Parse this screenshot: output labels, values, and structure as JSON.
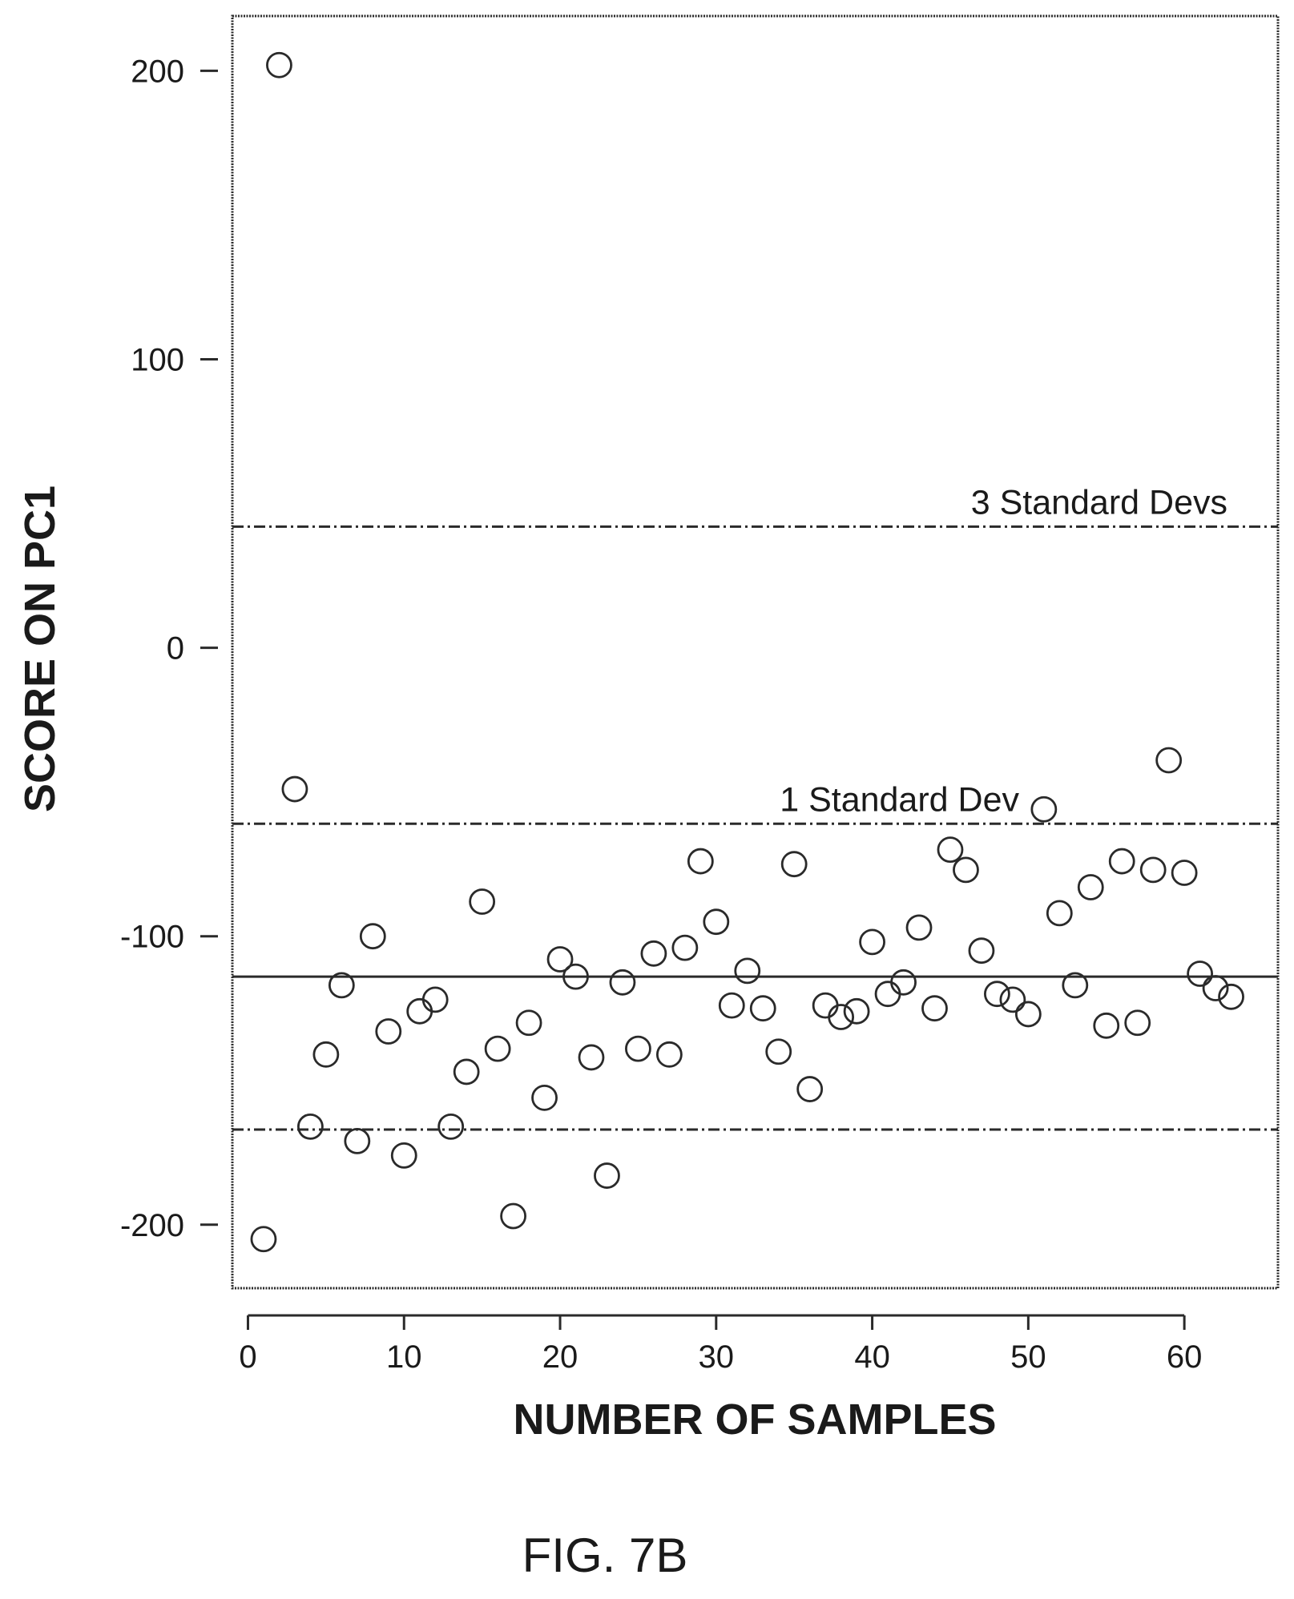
{
  "figure_label": "FIG. 7B",
  "chart_data": {
    "type": "scatter",
    "title": "",
    "xlabel": "NUMBER OF SAMPLES",
    "ylabel": "SCORE ON PC1",
    "xlim": [
      -1,
      66
    ],
    "ylim": [
      -222,
      219
    ],
    "xticks": [
      0,
      10,
      20,
      30,
      40,
      50,
      60
    ],
    "xtick_labels": [
      "0",
      "10",
      "20",
      "30",
      "40",
      "50",
      "60"
    ],
    "yticks": [
      200,
      100,
      0,
      -100,
      -200
    ],
    "ytick_labels": [
      "200",
      "100",
      "0",
      "-100",
      "-200"
    ],
    "grid": false,
    "marker": "open-circle",
    "reference_lines": [
      {
        "y": 42,
        "style": "dashed",
        "label": "3 Standard Devs"
      },
      {
        "y": -61,
        "style": "dashed",
        "label": "1 Standard Dev"
      },
      {
        "y": -114,
        "style": "solid",
        "label": ""
      },
      {
        "y": -167,
        "style": "dashed",
        "label": ""
      }
    ],
    "points": [
      {
        "x": 1,
        "y": -205
      },
      {
        "x": 2,
        "y": 202
      },
      {
        "x": 3,
        "y": -49
      },
      {
        "x": 4,
        "y": -166
      },
      {
        "x": 5,
        "y": -141
      },
      {
        "x": 6,
        "y": -117
      },
      {
        "x": 7,
        "y": -171
      },
      {
        "x": 8,
        "y": -100
      },
      {
        "x": 9,
        "y": -133
      },
      {
        "x": 10,
        "y": -176
      },
      {
        "x": 11,
        "y": -126
      },
      {
        "x": 12,
        "y": -122
      },
      {
        "x": 13,
        "y": -166
      },
      {
        "x": 14,
        "y": -147
      },
      {
        "x": 15,
        "y": -88
      },
      {
        "x": 16,
        "y": -139
      },
      {
        "x": 17,
        "y": -197
      },
      {
        "x": 18,
        "y": -130
      },
      {
        "x": 19,
        "y": -156
      },
      {
        "x": 20,
        "y": -108
      },
      {
        "x": 21,
        "y": -114
      },
      {
        "x": 22,
        "y": -142
      },
      {
        "x": 23,
        "y": -183
      },
      {
        "x": 24,
        "y": -116
      },
      {
        "x": 25,
        "y": -139
      },
      {
        "x": 26,
        "y": -106
      },
      {
        "x": 27,
        "y": -141
      },
      {
        "x": 28,
        "y": -104
      },
      {
        "x": 29,
        "y": -74
      },
      {
        "x": 30,
        "y": -95
      },
      {
        "x": 31,
        "y": -124
      },
      {
        "x": 32,
        "y": -112
      },
      {
        "x": 33,
        "y": -125
      },
      {
        "x": 34,
        "y": -140
      },
      {
        "x": 35,
        "y": -75
      },
      {
        "x": 36,
        "y": -153
      },
      {
        "x": 37,
        "y": -124
      },
      {
        "x": 38,
        "y": -128
      },
      {
        "x": 39,
        "y": -126
      },
      {
        "x": 40,
        "y": -102
      },
      {
        "x": 41,
        "y": -120
      },
      {
        "x": 42,
        "y": -116
      },
      {
        "x": 43,
        "y": -97
      },
      {
        "x": 44,
        "y": -125
      },
      {
        "x": 45,
        "y": -70
      },
      {
        "x": 46,
        "y": -77
      },
      {
        "x": 47,
        "y": -105
      },
      {
        "x": 48,
        "y": -120
      },
      {
        "x": 49,
        "y": -122
      },
      {
        "x": 50,
        "y": -127
      },
      {
        "x": 51,
        "y": -56
      },
      {
        "x": 52,
        "y": -92
      },
      {
        "x": 53,
        "y": -117
      },
      {
        "x": 54,
        "y": -83
      },
      {
        "x": 55,
        "y": -131
      },
      {
        "x": 56,
        "y": -74
      },
      {
        "x": 57,
        "y": -130
      },
      {
        "x": 58,
        "y": -77
      },
      {
        "x": 59,
        "y": -39
      },
      {
        "x": 60,
        "y": -78
      },
      {
        "x": 61,
        "y": -113
      },
      {
        "x": 62,
        "y": -118
      },
      {
        "x": 63,
        "y": -121
      }
    ]
  }
}
